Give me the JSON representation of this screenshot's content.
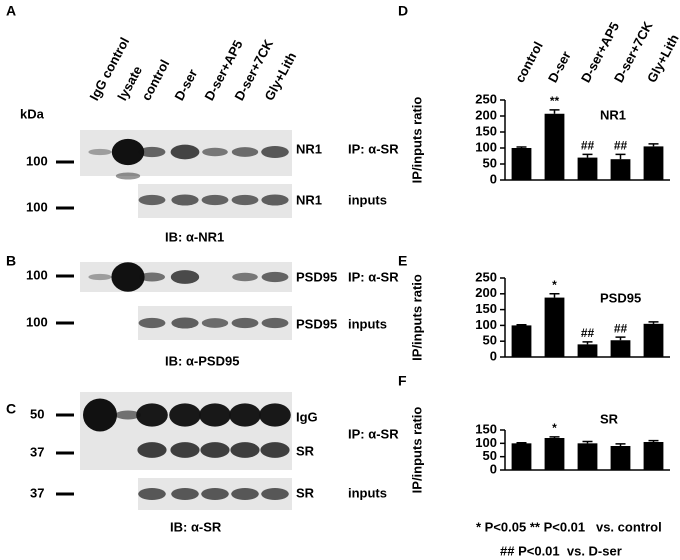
{
  "blots": {
    "kda": "kDa",
    "lanes": [
      "IgG control",
      "lysate",
      "control",
      "D-ser",
      "D-ser+AP5",
      "D-ser+7CK",
      "Gly+Lith"
    ],
    "panels": [
      {
        "letter": "A",
        "markers": [
          100,
          100
        ],
        "labels": [
          "NR1",
          "IP: α-SR",
          "NR1",
          "inputs"
        ],
        "ib": "IB: α-NR1"
      },
      {
        "letter": "B",
        "markers": [
          100,
          100
        ],
        "labels": [
          "PSD95",
          "IP: α-SR",
          "PSD95",
          "inputs"
        ],
        "ib": "IB: α-PSD95"
      },
      {
        "letter": "C",
        "markers": [
          50,
          37,
          37
        ],
        "labels": [
          "IgG",
          "IP: α-SR",
          "SR",
          "SR",
          "inputs"
        ],
        "ib": "IB: α-SR"
      }
    ]
  },
  "chart_data": [
    {
      "type": "bar",
      "panel": "D",
      "title": "NR1",
      "ylabel": "IP/inputs ratio",
      "categories": [
        "control",
        "D-ser",
        "D-ser+AP5",
        "D-ser+7CK",
        "Gly+Lith"
      ],
      "values": [
        100,
        207,
        70,
        65,
        105
      ],
      "errors": [
        3,
        12,
        10,
        15,
        8
      ],
      "value_annotations": [
        null,
        "**",
        "##",
        "##",
        null
      ],
      "color": "#000000",
      "ylim": [
        0,
        250
      ],
      "yticks": [
        0,
        50,
        100,
        150,
        200,
        250
      ]
    },
    {
      "type": "bar",
      "panel": "E",
      "title": "PSD95",
      "ylabel": "IP/inputs ratio",
      "values": [
        100,
        188,
        40,
        53,
        105
      ],
      "errors": [
        2,
        12,
        8,
        10,
        6
      ],
      "value_annotations": [
        null,
        "*",
        "##",
        "##",
        null
      ],
      "color": "#000000",
      "ylim": [
        0,
        250
      ],
      "yticks": [
        0,
        50,
        100,
        150,
        200,
        250
      ]
    },
    {
      "type": "bar",
      "panel": "F",
      "title": "SR",
      "ylabel": "IP/inputs ratio",
      "values": [
        100,
        120,
        100,
        90,
        105
      ],
      "errors": [
        2,
        4,
        7,
        8,
        5
      ],
      "value_annotations": [
        null,
        "*",
        null,
        null,
        null
      ],
      "color": "#000000",
      "ylim": [
        0,
        150
      ],
      "yticks": [
        0,
        50,
        100,
        150
      ]
    }
  ],
  "footnotes": [
    "* P<0.05 ** P<0.01   vs. control",
    "## P<0.01  vs. D-ser"
  ]
}
